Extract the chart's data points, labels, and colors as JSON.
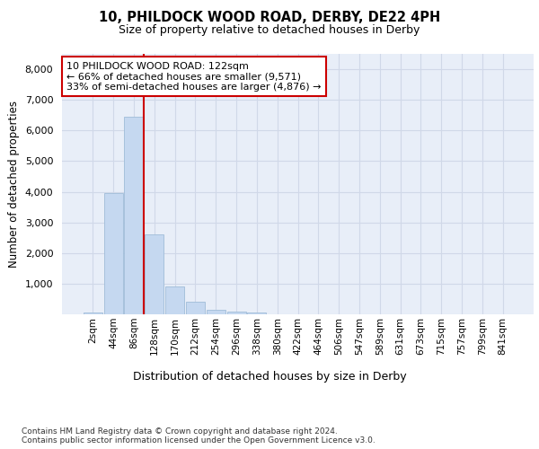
{
  "title_line1": "10, PHILDOCK WOOD ROAD, DERBY, DE22 4PH",
  "title_line2": "Size of property relative to detached houses in Derby",
  "xlabel": "Distribution of detached houses by size in Derby",
  "ylabel": "Number of detached properties",
  "footnote": "Contains HM Land Registry data © Crown copyright and database right 2024.\nContains public sector information licensed under the Open Government Licence v3.0.",
  "bar_labels": [
    "2sqm",
    "44sqm",
    "86sqm",
    "128sqm",
    "170sqm",
    "212sqm",
    "254sqm",
    "296sqm",
    "338sqm",
    "380sqm",
    "422sqm",
    "464sqm",
    "506sqm",
    "547sqm",
    "589sqm",
    "631sqm",
    "673sqm",
    "715sqm",
    "757sqm",
    "799sqm",
    "841sqm"
  ],
  "bar_values": [
    50,
    3950,
    6450,
    2600,
    900,
    420,
    150,
    80,
    60,
    0,
    0,
    0,
    0,
    0,
    0,
    0,
    0,
    0,
    0,
    0,
    0
  ],
  "bar_color": "#c5d8f0",
  "bar_edge_color": "#a0bcd8",
  "vline_color": "#cc0000",
  "annotation_text": "10 PHILDOCK WOOD ROAD: 122sqm\n← 66% of detached houses are smaller (9,571)\n33% of semi-detached houses are larger (4,876) →",
  "annotation_box_color": "#cc0000",
  "ylim": [
    0,
    8500
  ],
  "yticks": [
    0,
    1000,
    2000,
    3000,
    4000,
    5000,
    6000,
    7000,
    8000
  ],
  "grid_color": "#d0d8e8",
  "bg_color": "#e8eef8",
  "fig_bg_color": "#ffffff"
}
